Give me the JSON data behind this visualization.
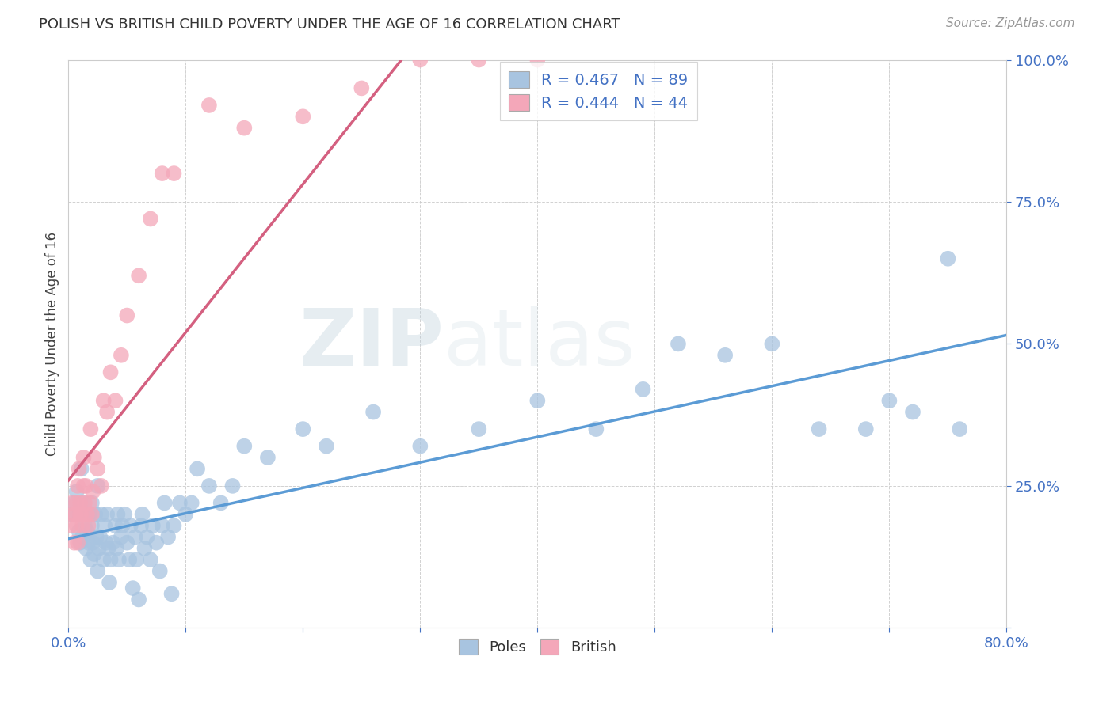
{
  "title": "POLISH VS BRITISH CHILD POVERTY UNDER THE AGE OF 16 CORRELATION CHART",
  "source": "Source: ZipAtlas.com",
  "ylabel": "Child Poverty Under the Age of 16",
  "xlim": [
    0.0,
    0.8
  ],
  "ylim": [
    0.0,
    1.0
  ],
  "poles_R": 0.467,
  "poles_N": 89,
  "british_R": 0.444,
  "british_N": 44,
  "poles_color": "#a8c4e0",
  "british_color": "#f4a7b9",
  "poles_line_color": "#5b9bd5",
  "british_line_color": "#d46080",
  "watermark_color": "#c8d8e8",
  "background_color": "#ffffff",
  "grid_color": "#cccccc",
  "tick_label_color": "#4472c4",
  "title_color": "#333333",
  "source_color": "#999999",
  "legend_rn_color": "#4472c4",
  "legend_label_color": "#333333",
  "poles_x": [
    0.003,
    0.005,
    0.007,
    0.008,
    0.009,
    0.01,
    0.01,
    0.011,
    0.012,
    0.013,
    0.014,
    0.015,
    0.015,
    0.016,
    0.017,
    0.018,
    0.019,
    0.02,
    0.02,
    0.021,
    0.022,
    0.023,
    0.024,
    0.025,
    0.025,
    0.026,
    0.027,
    0.028,
    0.03,
    0.031,
    0.032,
    0.033,
    0.034,
    0.035,
    0.036,
    0.038,
    0.04,
    0.041,
    0.042,
    0.043,
    0.045,
    0.046,
    0.048,
    0.05,
    0.052,
    0.053,
    0.055,
    0.057,
    0.058,
    0.06,
    0.062,
    0.063,
    0.065,
    0.067,
    0.07,
    0.072,
    0.075,
    0.078,
    0.08,
    0.082,
    0.085,
    0.088,
    0.09,
    0.095,
    0.1,
    0.105,
    0.11,
    0.12,
    0.13,
    0.14,
    0.15,
    0.17,
    0.2,
    0.22,
    0.26,
    0.3,
    0.35,
    0.4,
    0.45,
    0.49,
    0.52,
    0.56,
    0.6,
    0.64,
    0.68,
    0.7,
    0.72,
    0.75,
    0.76
  ],
  "poles_y": [
    0.2,
    0.22,
    0.24,
    0.2,
    0.17,
    0.2,
    0.15,
    0.28,
    0.16,
    0.22,
    0.18,
    0.2,
    0.14,
    0.17,
    0.15,
    0.2,
    0.12,
    0.18,
    0.22,
    0.15,
    0.13,
    0.2,
    0.16,
    0.1,
    0.25,
    0.14,
    0.16,
    0.2,
    0.12,
    0.18,
    0.15,
    0.2,
    0.14,
    0.08,
    0.12,
    0.15,
    0.18,
    0.14,
    0.2,
    0.12,
    0.16,
    0.18,
    0.2,
    0.15,
    0.12,
    0.18,
    0.07,
    0.16,
    0.12,
    0.05,
    0.18,
    0.2,
    0.14,
    0.16,
    0.12,
    0.18,
    0.15,
    0.1,
    0.18,
    0.22,
    0.16,
    0.06,
    0.18,
    0.22,
    0.2,
    0.22,
    0.28,
    0.25,
    0.22,
    0.25,
    0.32,
    0.3,
    0.35,
    0.32,
    0.38,
    0.32,
    0.35,
    0.4,
    0.35,
    0.42,
    0.5,
    0.48,
    0.5,
    0.35,
    0.35,
    0.4,
    0.38,
    0.65,
    0.35
  ],
  "british_x": [
    0.002,
    0.003,
    0.004,
    0.005,
    0.006,
    0.007,
    0.007,
    0.008,
    0.008,
    0.009,
    0.01,
    0.01,
    0.011,
    0.012,
    0.013,
    0.013,
    0.014,
    0.015,
    0.016,
    0.017,
    0.018,
    0.019,
    0.02,
    0.021,
    0.022,
    0.025,
    0.028,
    0.03,
    0.033,
    0.036,
    0.04,
    0.045,
    0.05,
    0.06,
    0.07,
    0.08,
    0.09,
    0.12,
    0.15,
    0.2,
    0.25,
    0.3,
    0.35,
    0.4
  ],
  "british_y": [
    0.18,
    0.22,
    0.2,
    0.15,
    0.2,
    0.18,
    0.22,
    0.15,
    0.25,
    0.28,
    0.2,
    0.22,
    0.2,
    0.18,
    0.25,
    0.3,
    0.22,
    0.25,
    0.2,
    0.18,
    0.22,
    0.35,
    0.2,
    0.24,
    0.3,
    0.28,
    0.25,
    0.4,
    0.38,
    0.45,
    0.4,
    0.48,
    0.55,
    0.62,
    0.72,
    0.8,
    0.8,
    0.92,
    0.88,
    0.9,
    0.95,
    1.0,
    1.0,
    1.0
  ]
}
